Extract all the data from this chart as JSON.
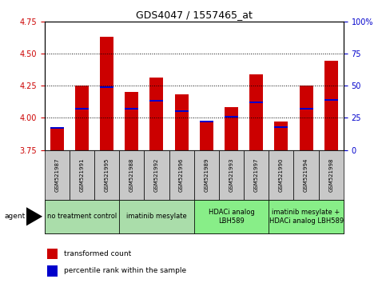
{
  "title": "GDS4047 / 1557465_at",
  "samples": [
    "GSM521987",
    "GSM521991",
    "GSM521995",
    "GSM521988",
    "GSM521992",
    "GSM521996",
    "GSM521989",
    "GSM521993",
    "GSM521997",
    "GSM521990",
    "GSM521994",
    "GSM521998"
  ],
  "red_values": [
    3.93,
    4.25,
    4.63,
    4.2,
    4.31,
    4.18,
    3.97,
    4.08,
    4.34,
    3.97,
    4.25,
    4.44
  ],
  "blue_values": [
    3.92,
    4.07,
    4.24,
    4.07,
    4.13,
    4.05,
    3.97,
    4.01,
    4.12,
    3.93,
    4.07,
    4.14
  ],
  "ylim_left": [
    3.75,
    4.75
  ],
  "ylim_right": [
    0,
    100
  ],
  "yticks_left": [
    3.75,
    4.0,
    4.25,
    4.5,
    4.75
  ],
  "yticks_right": [
    0,
    25,
    50,
    75,
    100
  ],
  "bar_color": "#cc0000",
  "blue_color": "#0000cc",
  "groups": [
    {
      "label": "no treatment control",
      "indices": [
        0,
        1,
        2
      ],
      "color": "#aaddaa"
    },
    {
      "label": "imatinib mesylate",
      "indices": [
        3,
        4,
        5
      ],
      "color": "#aaddaa"
    },
    {
      "label": "HDACi analog\nLBH589",
      "indices": [
        6,
        7,
        8
      ],
      "color": "#88ee88"
    },
    {
      "label": "imatinib mesylate +\nHDACi analog LBH589",
      "indices": [
        9,
        10,
        11
      ],
      "color": "#88ee88"
    }
  ],
  "legend_red": "transformed count",
  "legend_blue": "percentile rank within the sample",
  "bar_width": 0.55,
  "base_value": 3.75,
  "sample_box_color": "#c8c8c8",
  "title_fontsize": 9,
  "tick_fontsize": 7,
  "sample_fontsize": 5,
  "group_fontsize": 6
}
